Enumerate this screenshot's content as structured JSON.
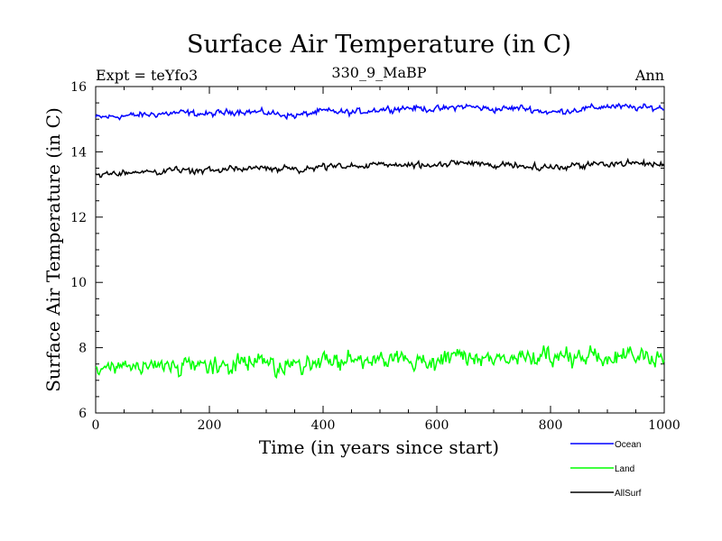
{
  "chart_data": {
    "type": "line",
    "title": "Surface Air Temperature (in C)",
    "subtitle_left": "Expt = teYfo3",
    "subtitle_center": "330_9_MaBP",
    "subtitle_right": "Ann",
    "xlabel": "Time (in years since start)",
    "ylabel": "Surface Air Temperature (in C)",
    "xlim": [
      0,
      1000
    ],
    "ylim": [
      6,
      16
    ],
    "x_ticks": [
      0,
      200,
      400,
      600,
      800,
      1000
    ],
    "y_ticks": [
      6,
      8,
      10,
      12,
      14,
      16
    ],
    "x_tick_labels": [
      "0",
      "200",
      "400",
      "600",
      "800",
      "1000"
    ],
    "y_tick_labels": [
      "6",
      "8",
      "10",
      "12",
      "14",
      "16"
    ],
    "sample_step_years": 50,
    "series": [
      {
        "name": "Ocean",
        "color": "#0000ff",
        "values": [
          15.05,
          15.1,
          15.15,
          15.2,
          15.15,
          15.25,
          15.2,
          15.1,
          15.25,
          15.2,
          15.3,
          15.35,
          15.3,
          15.4,
          15.3,
          15.35,
          15.2,
          15.3,
          15.4,
          15.35,
          15.35
        ]
      },
      {
        "name": "Land",
        "color": "#00ff00",
        "values": [
          7.3,
          7.35,
          7.4,
          7.45,
          7.4,
          7.5,
          7.55,
          7.5,
          7.55,
          7.6,
          7.6,
          7.65,
          7.6,
          7.7,
          7.65,
          7.7,
          7.65,
          7.7,
          7.75,
          7.75,
          7.7
        ]
      },
      {
        "name": "AllSurf",
        "color": "#000000",
        "values": [
          13.3,
          13.35,
          13.4,
          13.45,
          13.4,
          13.5,
          13.5,
          13.45,
          13.55,
          13.55,
          13.6,
          13.6,
          13.6,
          13.65,
          13.6,
          13.6,
          13.5,
          13.6,
          13.65,
          13.65,
          13.6
        ]
      }
    ],
    "legend_position": "bottom-right"
  }
}
